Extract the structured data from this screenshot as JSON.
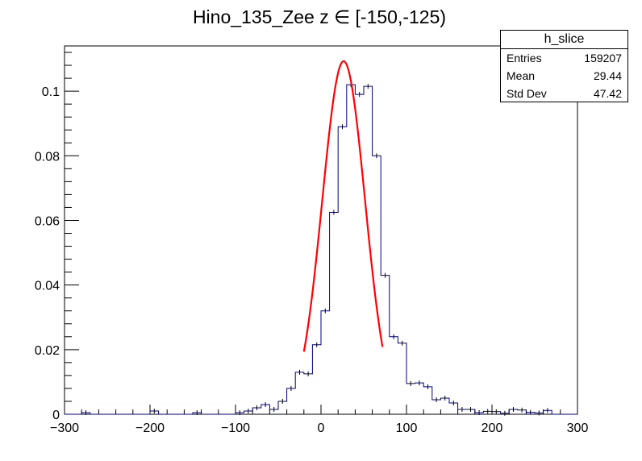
{
  "chart_data": {
    "type": "histogram",
    "title": "Hino_135_Zee z  ∈ [-150,-125)",
    "xlabel": "",
    "ylabel": "",
    "xlim": [
      -300,
      300
    ],
    "ylim": [
      0,
      0.114
    ],
    "x_ticks": [
      -300,
      -200,
      -100,
      0,
      100,
      200,
      300
    ],
    "y_ticks": [
      0,
      0.02,
      0.04,
      0.06,
      0.08,
      0.1
    ],
    "x_tick_labels": [
      "−300",
      "−200",
      "−100",
      "0",
      "100",
      "200",
      "300"
    ],
    "y_tick_labels": [
      "0",
      "0.02",
      "0.04",
      "0.06",
      "0.08",
      "0.1"
    ],
    "bin_width": 10,
    "bin_edges_start": -300,
    "values": [
      0,
      0,
      0.0005,
      0,
      0,
      0,
      0,
      0,
      0,
      0,
      0.001,
      0,
      0,
      0,
      0,
      0.0005,
      0,
      0,
      0,
      0,
      0.0005,
      0.001,
      0.002,
      0.003,
      0.0015,
      0.004,
      0.008,
      0.013,
      0.0125,
      0.0215,
      0.032,
      0.0625,
      0.089,
      0.102,
      0.099,
      0.1015,
      0.08,
      0.043,
      0.024,
      0.022,
      0.0095,
      0.0097,
      0.0085,
      0.0045,
      0.005,
      0.0035,
      0.0015,
      0.0015,
      0.0005,
      0.0009,
      0.0008,
      0.0003,
      0.0015,
      0.0013,
      0.0006,
      0.0004,
      0.0012,
      0,
      0,
      0
    ],
    "fit": {
      "type": "gaussian",
      "amplitude": 0.1093,
      "mean": 26.5,
      "sigma": 25,
      "x_range": [
        -20,
        72
      ],
      "color": "#ff0000"
    },
    "histogram_color": "#000080",
    "stats": {
      "name": "h_slice",
      "rows": [
        {
          "label": "Entries",
          "value": "159207"
        },
        {
          "label": "Mean",
          "value": "29.44"
        },
        {
          "label": "Std Dev",
          "value": "47.42"
        }
      ]
    }
  }
}
